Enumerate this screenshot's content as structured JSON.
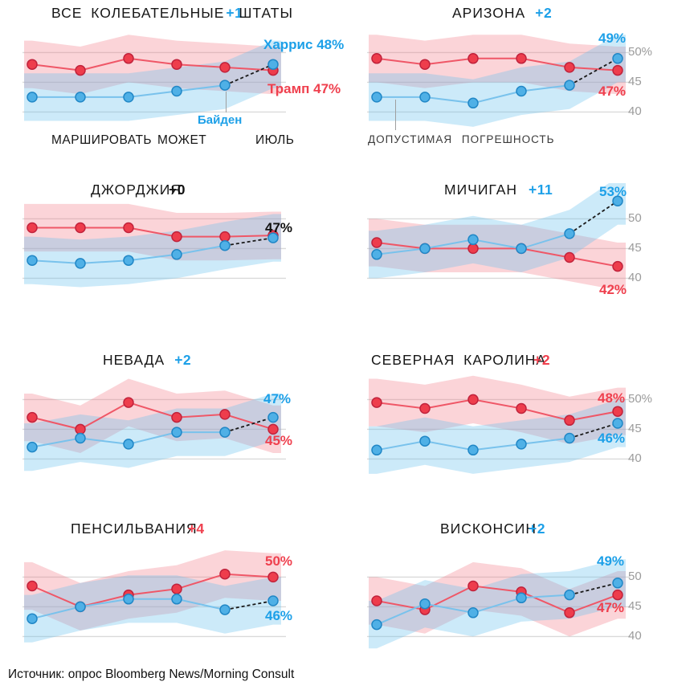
{
  "page": {
    "source": "Источник: опрос Bloomberg News/Morning Consult"
  },
  "colors": {
    "red_line": "#ef5767",
    "red_dot": "#ee3d4c",
    "red_dot_stroke": "#c0233c",
    "red_band": "rgba(243,111,126,0.30)",
    "red_label": "#ef404e",
    "blue_line": "#79c2ec",
    "blue_dot": "#4fb0e6",
    "blue_dot_stroke": "#2187c6",
    "blue_band": "rgba(105,192,238,0.34)",
    "blue_label": "#1da0e8",
    "gridline": "#dadada",
    "dash": "#1a1a1a",
    "tick": "#9b9b9b",
    "black_label": "#111111"
  },
  "annotations": {
    "harris_line_label": "Харрис 48%",
    "trump_line_label": "Трамп 47%",
    "biden_callout": "Байден",
    "moe_note": "ДОПУСТИМАЯ ПОГРЕШНОСТЬ",
    "x_tick_labels": [
      "МАРШИРОВАТЬ",
      "МОЖЕТ",
      "ИЮЛЬ"
    ]
  },
  "chart_data": [
    {
      "type": "line",
      "title": "ВСЕ КОЛЕБАТЕЛЬНЫЕ",
      "title_suffix": "ШТАТЫ",
      "lead": "+1",
      "lead_color": "#1da0e8",
      "ylim": [
        36,
        56
      ],
      "gridlines": [
        50,
        45,
        40
      ],
      "moe": 4,
      "x_tick_labels": [
        "МАРШИРОВАТЬ",
        "МОЖЕТ",
        "ИЮЛЬ"
      ],
      "series": [
        {
          "name": "Трамп",
          "color": "red",
          "values": [
            48,
            47,
            49,
            48,
            47.5,
            47
          ],
          "end_label": ""
        },
        {
          "name": "Харрис (Байден до июля)",
          "color": "blue",
          "values": [
            42.5,
            42.5,
            42.5,
            43.5,
            44.5,
            48
          ],
          "end_label": ""
        }
      ],
      "yticks": []
    },
    {
      "type": "line",
      "title": "АРИЗОНА",
      "lead": "+2",
      "lead_color": "#1da0e8",
      "ylim": [
        36,
        56
      ],
      "gridlines": [
        50,
        45,
        40
      ],
      "moe": 4,
      "series": [
        {
          "name": "Трамп",
          "color": "red",
          "values": [
            49,
            48,
            49,
            49,
            47.5,
            47
          ],
          "end_label": "47%"
        },
        {
          "name": "Харрис (Байден до июля)",
          "color": "blue",
          "values": [
            42.5,
            42.5,
            41.5,
            43.5,
            44.5,
            49
          ],
          "end_label": "49%"
        }
      ],
      "yticks": [
        {
          "value": 50,
          "label": "50%"
        },
        {
          "value": 45,
          "label": "45"
        },
        {
          "value": 40,
          "label": "40"
        }
      ]
    },
    {
      "type": "line",
      "title": "ДЖОРДЖИЯ",
      "lead": "+0",
      "lead_color": "#111111",
      "tie_label": "47%",
      "ylim": [
        36,
        56
      ],
      "gridlines": [
        50,
        45,
        40
      ],
      "moe": 4,
      "series": [
        {
          "name": "Трамп",
          "color": "red",
          "values": [
            48.5,
            48.5,
            48.5,
            47,
            47,
            47.2
          ],
          "end_label": ""
        },
        {
          "name": "Харрис (Байден до июля)",
          "color": "blue",
          "values": [
            43,
            42.5,
            43,
            44,
            45.5,
            46.8
          ],
          "end_label": ""
        }
      ],
      "yticks": []
    },
    {
      "type": "line",
      "title": "МИЧИГАН",
      "lead": "+11",
      "lead_color": "#1da0e8",
      "ylim": [
        36,
        56
      ],
      "gridlines": [
        50,
        45,
        40
      ],
      "moe": 4,
      "series": [
        {
          "name": "Трамп",
          "color": "red",
          "values": [
            46,
            45,
            45,
            45,
            43.5,
            42
          ],
          "end_label": "42%"
        },
        {
          "name": "Харрис (Байден до июля)",
          "color": "blue",
          "values": [
            44,
            45,
            46.5,
            45,
            47.5,
            53
          ],
          "end_label": "53%"
        }
      ],
      "yticks": [
        {
          "value": 50,
          "label": "50"
        },
        {
          "value": 45,
          "label": "45"
        },
        {
          "value": 40,
          "label": "40"
        }
      ]
    },
    {
      "type": "line",
      "title": "НЕВАДА",
      "lead": "+2",
      "lead_color": "#1da0e8",
      "ylim": [
        36,
        56
      ],
      "gridlines": [
        50,
        45,
        40
      ],
      "moe": 4,
      "series": [
        {
          "name": "Трамп",
          "color": "red",
          "values": [
            47,
            45,
            49.5,
            47,
            47.5,
            45
          ],
          "end_label": "45%"
        },
        {
          "name": "Харрис (Байден до июля)",
          "color": "blue",
          "values": [
            42,
            43.5,
            42.5,
            44.5,
            44.5,
            47
          ],
          "end_label": "47%"
        }
      ],
      "yticks": []
    },
    {
      "type": "line",
      "title": "СЕВЕРНАЯ КАРОЛИНА",
      "lead": "+2",
      "lead_color": "#ef404e",
      "ylim": [
        36,
        56
      ],
      "gridlines": [
        50,
        45,
        40
      ],
      "moe": 4,
      "series": [
        {
          "name": "Трамп",
          "color": "red",
          "values": [
            49.5,
            48.5,
            50,
            48.5,
            46.5,
            48
          ],
          "end_label": "48%"
        },
        {
          "name": "Харрис (Байден до июля)",
          "color": "blue",
          "values": [
            41.5,
            43,
            41.5,
            42.5,
            43.5,
            46
          ],
          "end_label": "46%"
        }
      ],
      "yticks": [
        {
          "value": 50,
          "label": "50%"
        },
        {
          "value": 45,
          "label": "45"
        },
        {
          "value": 40,
          "label": "40"
        }
      ]
    },
    {
      "type": "line",
      "title": "ПЕНСИЛЬВАНИЯ",
      "lead": "+4",
      "lead_color": "#ef404e",
      "ylim": [
        36,
        56
      ],
      "gridlines": [
        50,
        45,
        40
      ],
      "moe": 4,
      "series": [
        {
          "name": "Трамп",
          "color": "red",
          "values": [
            48.5,
            45,
            47,
            48,
            50.5,
            50
          ],
          "end_label": "50%"
        },
        {
          "name": "Харрис (Байден до июля)",
          "color": "blue",
          "values": [
            43,
            45,
            46.3,
            46.3,
            44.5,
            46
          ],
          "end_label": "46%"
        }
      ],
      "yticks": []
    },
    {
      "type": "line",
      "title": "ВИСКОНСИН",
      "lead": "+2",
      "lead_color": "#1da0e8",
      "ylim": [
        36,
        56
      ],
      "gridlines": [
        50,
        45,
        40
      ],
      "moe": 4,
      "series": [
        {
          "name": "Трамп",
          "color": "red",
          "values": [
            46,
            44.5,
            48.5,
            47.5,
            44,
            47
          ],
          "end_label": "47%"
        },
        {
          "name": "Харрис (Байден до июля)",
          "color": "blue",
          "values": [
            42,
            45.5,
            44,
            46.5,
            47,
            49
          ],
          "end_label": "49%"
        }
      ],
      "yticks": [
        {
          "value": 50,
          "label": "50"
        },
        {
          "value": 45,
          "label": "45"
        },
        {
          "value": 40,
          "label": "40"
        }
      ]
    }
  ]
}
